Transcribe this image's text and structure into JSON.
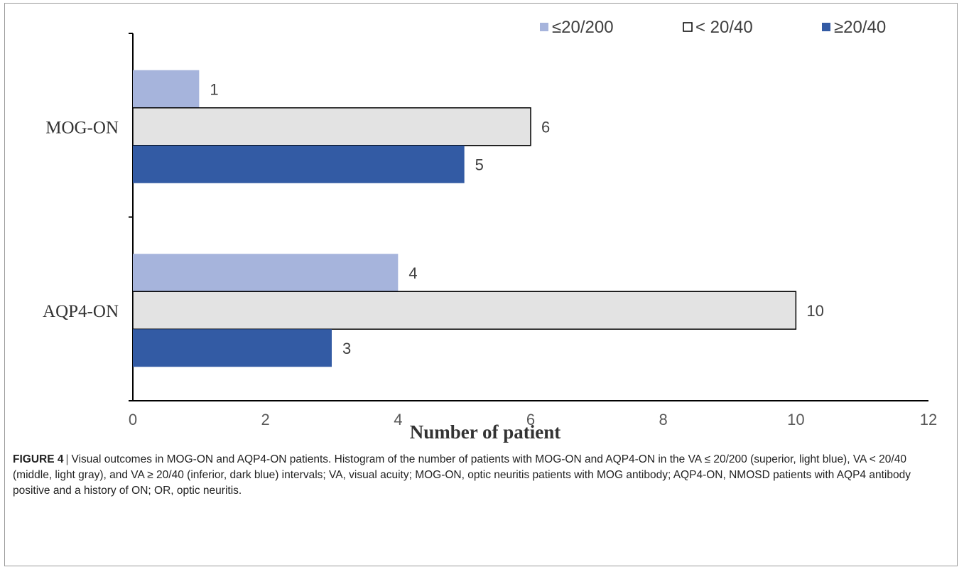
{
  "chart_data": {
    "type": "bar",
    "orientation": "horizontal",
    "categories": [
      "MOG-ON",
      "AQP4-ON"
    ],
    "series": [
      {
        "name": "≤20/200",
        "values": [
          1,
          4
        ],
        "color": "#a6b4dc"
      },
      {
        "name": "< 20/40",
        "values": [
          6,
          10
        ],
        "color": "#e3e3e3"
      },
      {
        "name": "≥20/40",
        "values": [
          5,
          3
        ],
        "color": "#335ba4"
      }
    ],
    "xlabel": "Number of patient",
    "xlim": [
      0,
      12
    ],
    "xticks": [
      "0",
      "2",
      "4",
      "6",
      "8",
      "10",
      "12"
    ],
    "legend_position": "top-right",
    "grid": false
  },
  "caption": {
    "label": "FIGURE 4",
    "separator": "|",
    "text": "Visual outcomes in MOG-ON and AQP4-ON patients. Histogram of the number of patients with MOG-ON and AQP4-ON in the VA ≤ 20/200 (superior, light blue), VA < 20/40 (middle, light gray), and VA ≥ 20/40 (inferior, dark blue) intervals; VA, visual acuity; MOG-ON, optic neuritis patients with MOG antibody; AQP4-ON, NMOSD patients with AQP4 antibody positive and a history of ON; OR, optic neuritis."
  }
}
